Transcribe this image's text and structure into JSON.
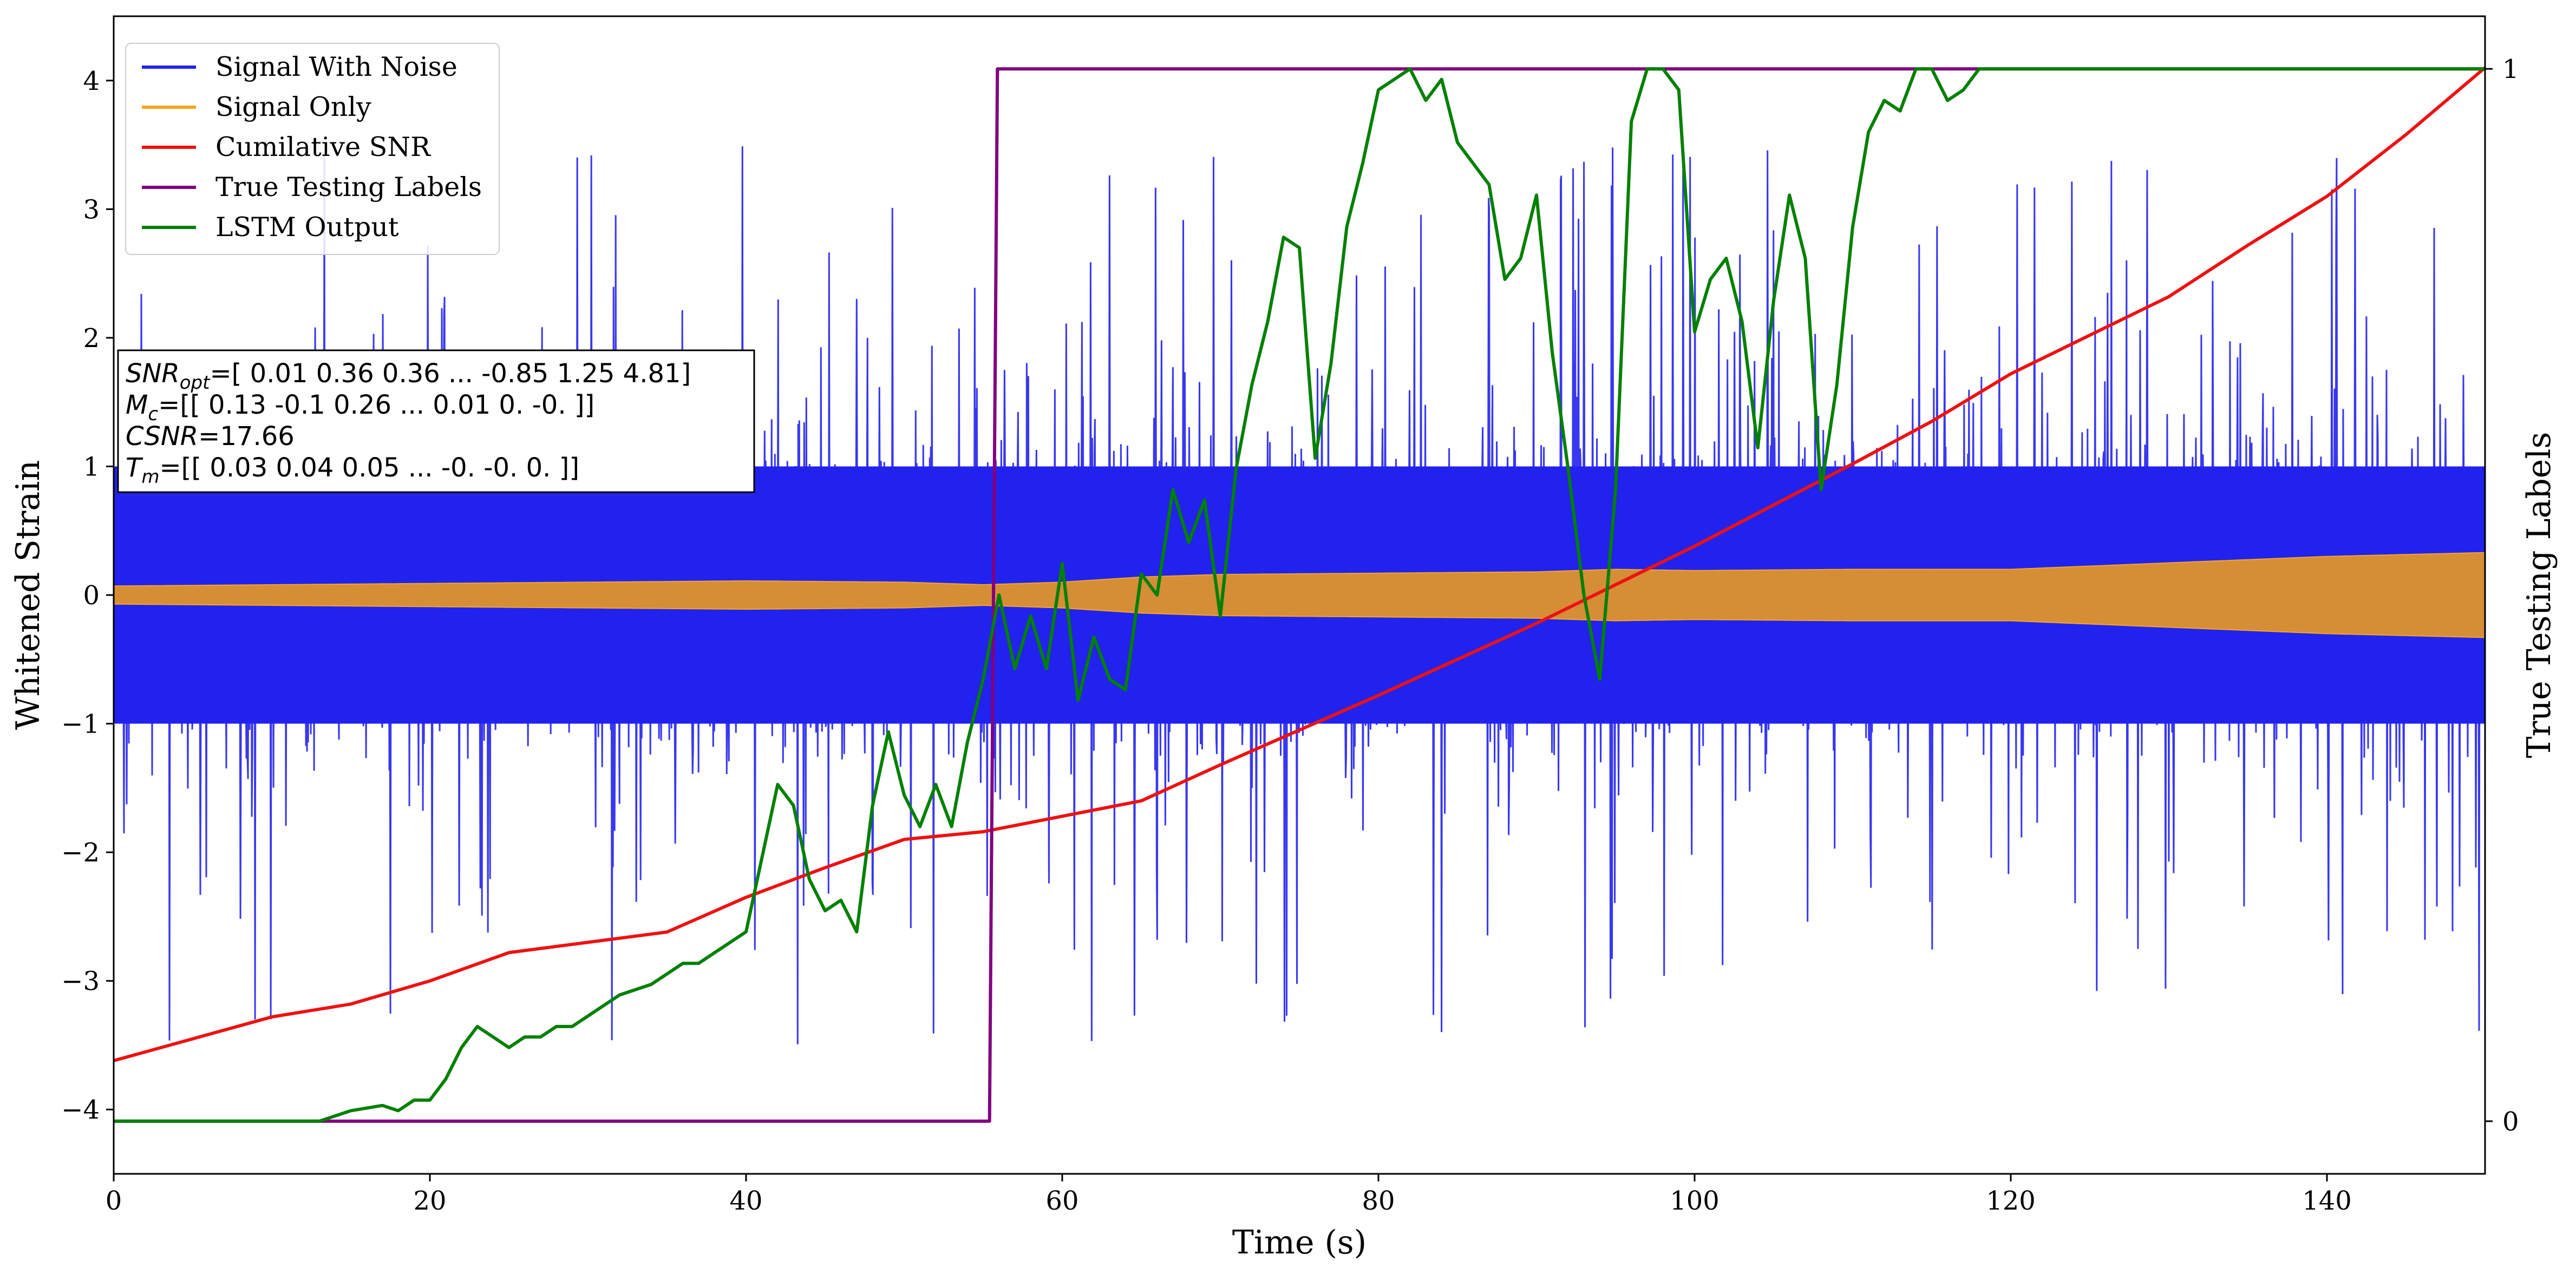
{
  "chart_data": {
    "type": "line",
    "title": "",
    "xlabel": "Time (s)",
    "ylabel": "Whitened Strain",
    "y2label": "True Testing Labels",
    "xlim": [
      0,
      150
    ],
    "ylim": [
      -4.5,
      4.5
    ],
    "y2lim": [
      -0.05,
      1.05
    ],
    "xticks": [
      0,
      20,
      40,
      60,
      80,
      100,
      120,
      140
    ],
    "yticks": [
      -4,
      -3,
      -2,
      -1,
      0,
      1,
      2,
      3,
      4
    ],
    "y2ticks": [
      0,
      1
    ],
    "ytick_labels": [
      "−4",
      "−3",
      "−2",
      "−1",
      "0",
      "1",
      "2",
      "3",
      "4"
    ],
    "grid": false,
    "legend_position": "top-left",
    "series": [
      {
        "name": "Signal With Noise",
        "color": "#2222ee",
        "axis": "left",
        "kind": "noise-band",
        "core_amplitude": 1.0,
        "spike_max": 3.6,
        "spike_min": -3.5
      },
      {
        "name": "Signal Only",
        "color": "#f5a623",
        "axis": "left",
        "kind": "envelope",
        "x": [
          0,
          10,
          20,
          30,
          40,
          50,
          55,
          60,
          65,
          70,
          80,
          90,
          95,
          100,
          110,
          120,
          130,
          140,
          150
        ],
        "amplitude": [
          0.07,
          0.08,
          0.09,
          0.1,
          0.11,
          0.1,
          0.08,
          0.1,
          0.14,
          0.16,
          0.17,
          0.18,
          0.2,
          0.19,
          0.2,
          0.2,
          0.25,
          0.3,
          0.33
        ]
      },
      {
        "name": "Cumilative SNR",
        "color": "#ee1111",
        "axis": "left",
        "x": [
          0,
          5,
          10,
          15,
          20,
          25,
          30,
          35,
          40,
          45,
          50,
          55,
          60,
          65,
          70,
          75,
          80,
          85,
          90,
          95,
          100,
          105,
          110,
          115,
          120,
          125,
          130,
          135,
          140,
          145,
          150
        ],
        "y": [
          -3.62,
          -3.45,
          -3.28,
          -3.18,
          -3.0,
          -2.78,
          -2.7,
          -2.62,
          -2.35,
          -2.12,
          -1.9,
          -1.84,
          -1.72,
          -1.6,
          -1.32,
          -1.05,
          -0.78,
          -0.5,
          -0.22,
          0.08,
          0.38,
          0.7,
          1.02,
          1.35,
          1.72,
          2.02,
          2.32,
          2.72,
          3.1,
          3.58,
          4.1
        ]
      },
      {
        "name": "True Testing Labels",
        "color": "#800080",
        "axis": "right",
        "x": [
          0,
          55.4,
          55.9,
          150
        ],
        "y": [
          0,
          0,
          1,
          1
        ]
      },
      {
        "name": "LSTM Output",
        "color": "#008000",
        "axis": "right",
        "x": [
          0,
          13,
          15,
          17,
          18,
          19,
          20,
          21,
          22,
          23,
          24,
          25,
          26,
          27,
          28,
          29,
          30,
          32,
          34,
          35,
          36,
          37,
          38,
          39,
          40,
          41,
          42,
          43,
          44,
          45,
          46,
          47,
          48,
          49,
          50,
          51,
          52,
          53,
          54,
          55,
          56,
          57,
          58,
          59,
          60,
          61,
          62,
          63,
          64,
          65,
          66,
          67,
          68,
          69,
          70,
          71,
          72,
          73,
          74,
          75,
          76,
          77,
          78,
          79,
          80,
          81,
          82,
          83,
          84,
          85,
          86,
          87,
          88,
          89,
          90,
          91,
          92,
          93,
          94,
          95,
          96,
          97,
          98,
          99,
          100,
          101,
          102,
          103,
          104,
          105,
          106,
          107,
          108,
          109,
          110,
          111,
          112,
          113,
          114,
          115,
          116,
          117,
          118,
          119,
          120,
          125,
          130,
          150
        ],
        "y": [
          0,
          0,
          0.01,
          0.015,
          0.01,
          0.02,
          0.02,
          0.04,
          0.07,
          0.09,
          0.08,
          0.07,
          0.08,
          0.08,
          0.09,
          0.09,
          0.1,
          0.12,
          0.13,
          0.14,
          0.15,
          0.15,
          0.16,
          0.17,
          0.18,
          0.25,
          0.32,
          0.3,
          0.23,
          0.2,
          0.21,
          0.18,
          0.3,
          0.37,
          0.31,
          0.28,
          0.32,
          0.28,
          0.36,
          0.42,
          0.5,
          0.43,
          0.48,
          0.43,
          0.53,
          0.4,
          0.46,
          0.42,
          0.41,
          0.52,
          0.5,
          0.6,
          0.55,
          0.59,
          0.48,
          0.62,
          0.7,
          0.76,
          0.84,
          0.83,
          0.63,
          0.72,
          0.85,
          0.91,
          0.98,
          0.99,
          1.0,
          0.97,
          0.99,
          0.93,
          0.91,
          0.89,
          0.8,
          0.82,
          0.88,
          0.73,
          0.62,
          0.5,
          0.42,
          0.6,
          0.95,
          1.0,
          1.0,
          0.98,
          0.75,
          0.8,
          0.82,
          0.76,
          0.64,
          0.78,
          0.88,
          0.82,
          0.6,
          0.7,
          0.85,
          0.94,
          0.97,
          0.96,
          1.0,
          1.0,
          0.97,
          0.98,
          1.0,
          1.0,
          1.0,
          1.0,
          1.0,
          1.0
        ]
      }
    ],
    "annotation": {
      "lines": [
        {
          "label": "SNR",
          "sub": "opt",
          "value": "=[ 0.01  0.36  0.36 ... -0.85  1.25  4.81]"
        },
        {
          "label": "M",
          "sub": "c",
          "value": "=[[ 0.13 -0.1   0.26 ...  0.01  0.   -0.  ]]"
        },
        {
          "label": "CSNR",
          "sub": "",
          "value": "=17.66"
        },
        {
          "label": "T",
          "sub": "m",
          "value": "=[[ 0.03  0.04  0.05 ... -0.   -0.    0.  ]]"
        }
      ]
    }
  }
}
